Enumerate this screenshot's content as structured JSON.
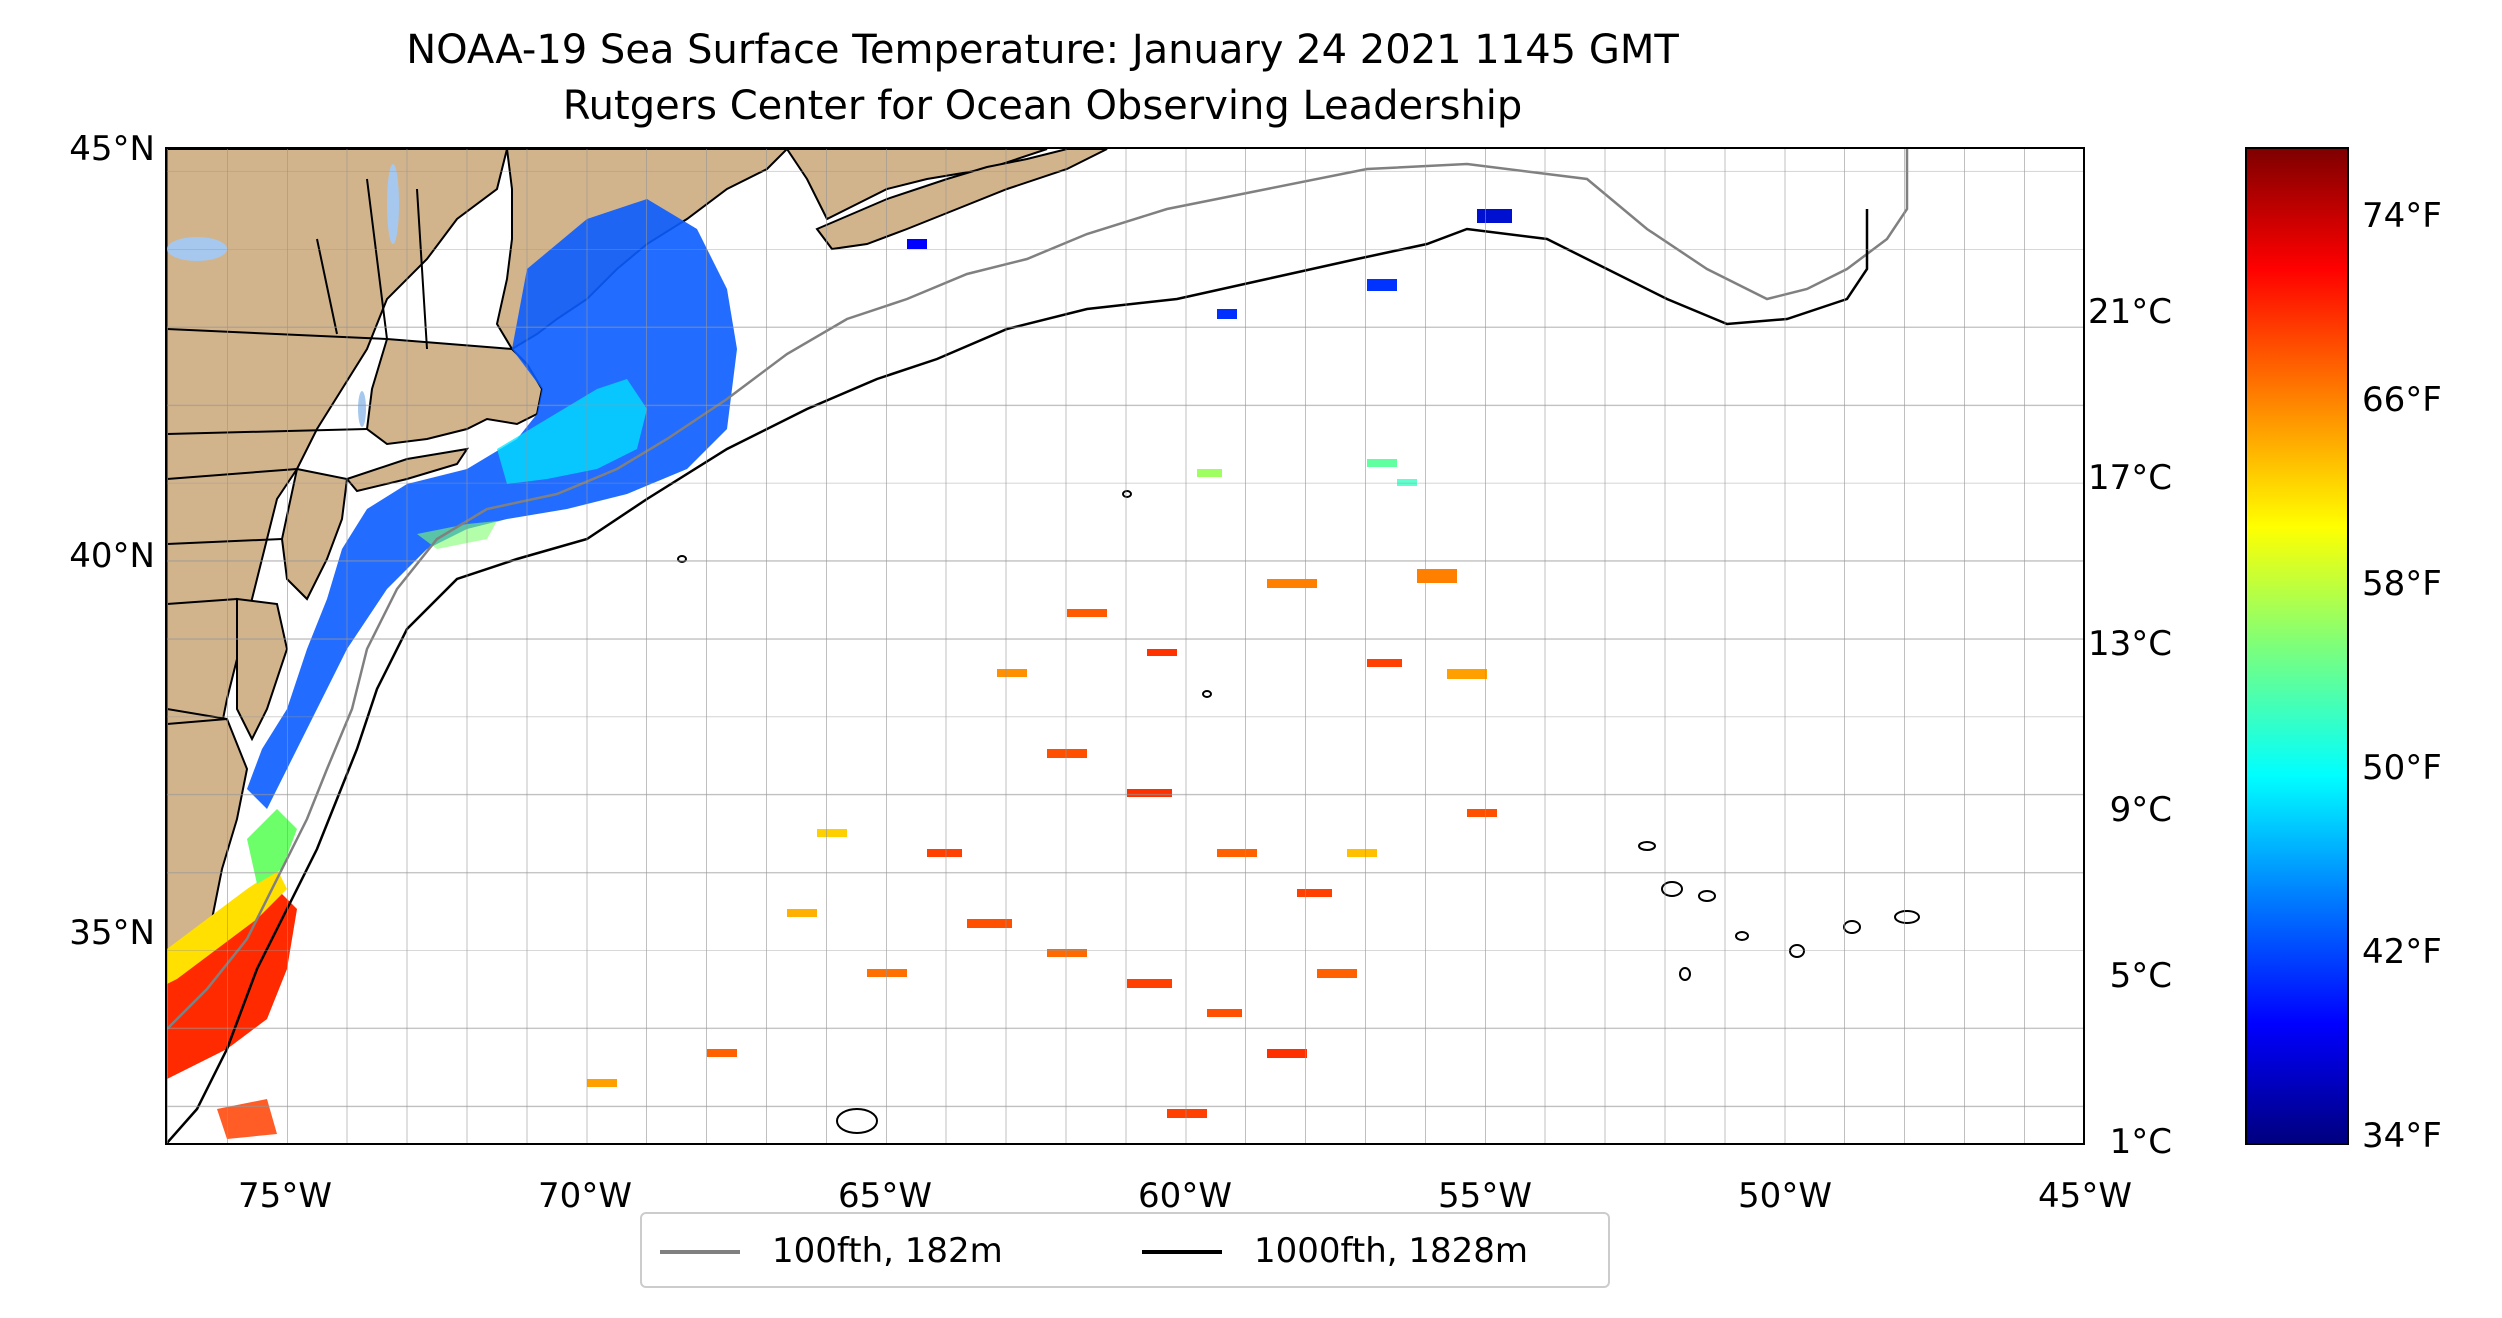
{
  "title": {
    "line1": "NOAA-19 Sea Surface Temperature: January 24 2021 1145 GMT",
    "line2": "Rutgers Center for Ocean Observing Leadership"
  },
  "map": {
    "lat_labels": [
      "45°N",
      "40°N",
      "35°N"
    ],
    "lon_labels": [
      "75°W",
      "70°W",
      "65°W",
      "60°W",
      "55°W",
      "50°W",
      "45°W"
    ],
    "extent": {
      "lon_min": -77,
      "lon_max": -45,
      "lat_min": 32.2,
      "lat_max": 45
    },
    "land_color": "#d2b48c",
    "lake_color": "#a6c8ee",
    "grid": "dashed, 1 degree spacing"
  },
  "colorbar": {
    "celsius_labels": [
      "21°C",
      "17°C",
      "13°C",
      "9°C",
      "5°C",
      "1°C"
    ],
    "fahrenheit_labels": [
      "74°F",
      "66°F",
      "58°F",
      "50°F",
      "42°F",
      "34°F"
    ],
    "colormap": "jet"
  },
  "legend": {
    "items": [
      {
        "label": "100fth, 182m",
        "color": "#808080"
      },
      {
        "label": "1000fth, 1828m",
        "color": "#000000"
      }
    ]
  }
}
